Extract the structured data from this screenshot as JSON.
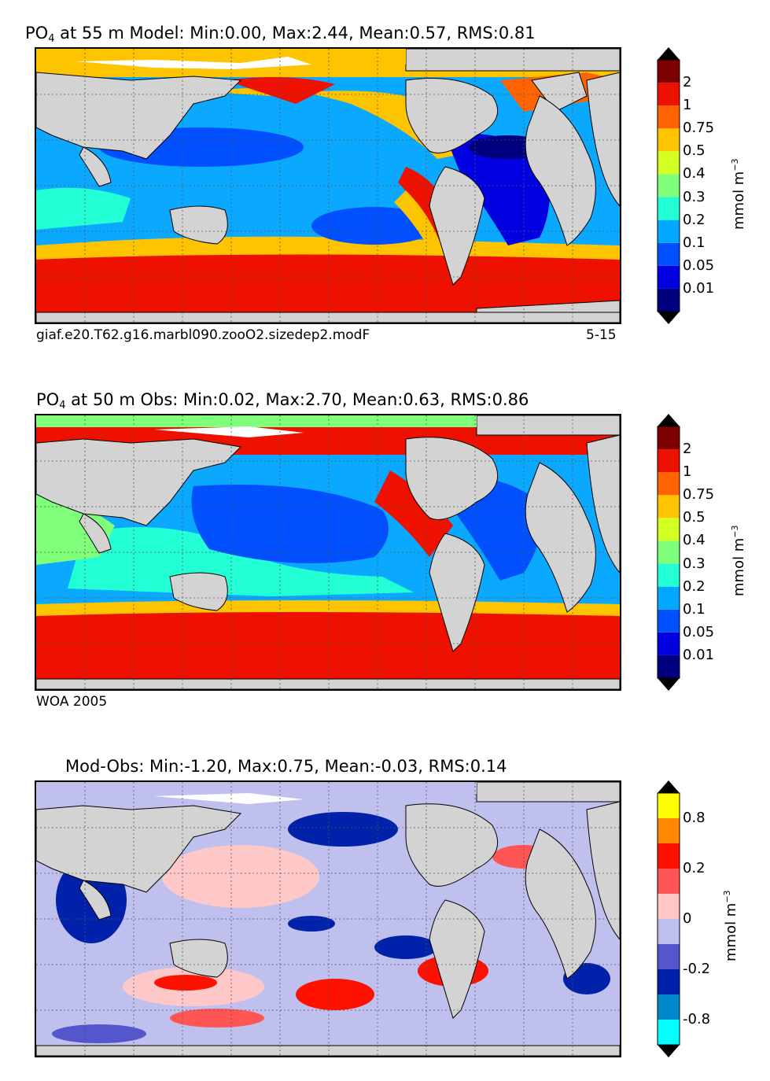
{
  "panels": [
    {
      "title_pre": "PO",
      "title_sub": "4",
      "title_post": "  at 55 m Model: Min:0.00, Max:2.44, Mean:0.57, RMS:0.81",
      "foot_left": "giaf.e20.T62.g16.marbl090.zooO2.sizedep2.modF",
      "foot_right": "5-15",
      "colorbar": {
        "colors": [
          "#00007f",
          "#0000e0",
          "#0050ff",
          "#00a8ff",
          "#22ffd4",
          "#80ff7a",
          "#d4ff22",
          "#ffc400",
          "#ff6400",
          "#ee1100",
          "#7f0000"
        ],
        "labels": [
          "0.01",
          "0.05",
          "0.1",
          "0.2",
          "0.3",
          "0.4",
          "0.5",
          "0.75",
          "1",
          "2"
        ]
      },
      "unit_main": "mmol m",
      "unit_sup": "−3"
    },
    {
      "title_pre": "PO",
      "title_sub": "4",
      "title_post": "  at 50 m Obs: Min:0.02, Max:2.70, Mean:0.63, RMS:0.86",
      "foot_left": "WOA 2005",
      "foot_right": "",
      "colorbar": {
        "colors": [
          "#00007f",
          "#0000e0",
          "#0050ff",
          "#00a8ff",
          "#22ffd4",
          "#80ff7a",
          "#d4ff22",
          "#ffc400",
          "#ff6400",
          "#ee1100",
          "#7f0000"
        ],
        "labels": [
          "0.01",
          "0.05",
          "0.1",
          "0.2",
          "0.3",
          "0.4",
          "0.5",
          "0.75",
          "1",
          "2"
        ]
      },
      "unit_main": "mmol m",
      "unit_sup": "−3"
    },
    {
      "title_pre": "",
      "title_sub": "",
      "title_post": "Mod-Obs: Min:-1.20, Max:0.75, Mean:-0.03, RMS:0.14",
      "foot_left": "",
      "foot_right": "",
      "colorbar": {
        "colors": [
          "#00ffff",
          "#0088cc",
          "#0022aa",
          "#5555cc",
          "#c0c0ee",
          "#ffc8c8",
          "#ff5555",
          "#ff1100",
          "#ff8800",
          "#ffff00"
        ],
        "labels": [
          "-0.8",
          "-0.2",
          "0",
          "0.2",
          "0.8"
        ]
      },
      "unit_main": "mmol m",
      "unit_sup": "−3"
    }
  ]
}
